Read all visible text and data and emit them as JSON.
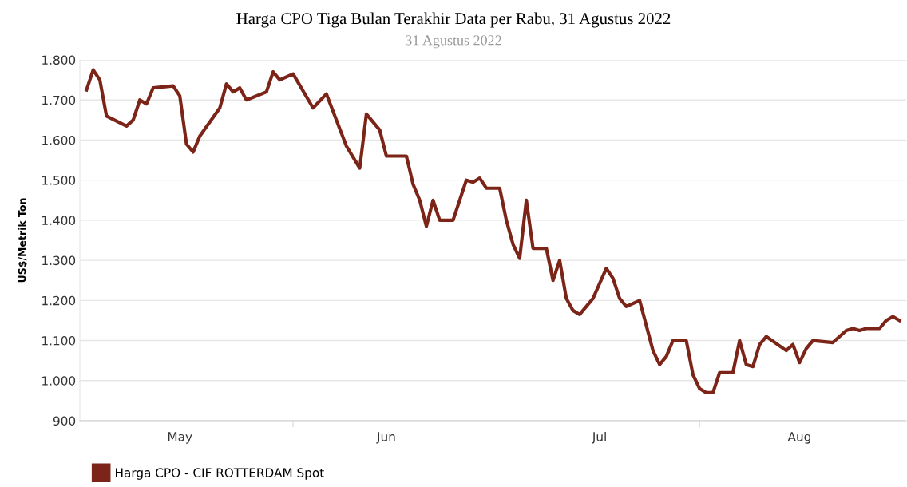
{
  "chart_data": {
    "type": "line",
    "title": "Harga CPO Tiga Bulan Terakhir Data per Rabu, 31 Agustus 2022",
    "subtitle": "31 Agustus 2022",
    "ylabel": "US$/Metrik Ton",
    "x": [
      "2022-05-01",
      "2022-05-02",
      "2022-05-03",
      "2022-05-04",
      "2022-05-07",
      "2022-05-08",
      "2022-05-09",
      "2022-05-10",
      "2022-05-11",
      "2022-05-14",
      "2022-05-15",
      "2022-05-16",
      "2022-05-17",
      "2022-05-18",
      "2022-05-21",
      "2022-05-22",
      "2022-05-23",
      "2022-05-24",
      "2022-05-25",
      "2022-05-28",
      "2022-05-29",
      "2022-05-30",
      "2022-06-01",
      "2022-06-04",
      "2022-06-06",
      "2022-06-09",
      "2022-06-11",
      "2022-06-12",
      "2022-06-14",
      "2022-06-15",
      "2022-06-18",
      "2022-06-19",
      "2022-06-20",
      "2022-06-21",
      "2022-06-22",
      "2022-06-23",
      "2022-06-25",
      "2022-06-27",
      "2022-06-28",
      "2022-06-29",
      "2022-06-30",
      "2022-07-02",
      "2022-07-03",
      "2022-07-04",
      "2022-07-05",
      "2022-07-06",
      "2022-07-07",
      "2022-07-09",
      "2022-07-10",
      "2022-07-11",
      "2022-07-12",
      "2022-07-13",
      "2022-07-14",
      "2022-07-16",
      "2022-07-18",
      "2022-07-19",
      "2022-07-20",
      "2022-07-21",
      "2022-07-23",
      "2022-07-25",
      "2022-07-26",
      "2022-07-27",
      "2022-07-28",
      "2022-07-30",
      "2022-07-31",
      "2022-08-01",
      "2022-08-02",
      "2022-08-03",
      "2022-08-04",
      "2022-08-06",
      "2022-08-07",
      "2022-08-08",
      "2022-08-09",
      "2022-08-10",
      "2022-08-11",
      "2022-08-14",
      "2022-08-15",
      "2022-08-16",
      "2022-08-17",
      "2022-08-18",
      "2022-08-21",
      "2022-08-23",
      "2022-08-24",
      "2022-08-25",
      "2022-08-26",
      "2022-08-28",
      "2022-08-29",
      "2022-08-30",
      "2022-08-31"
    ],
    "series": [
      {
        "name": "Harga CPO - CIF ROTTERDAM Spot",
        "color": "#7b2417",
        "values": [
          1725,
          1775,
          1750,
          1660,
          1635,
          1650,
          1700,
          1690,
          1730,
          1735,
          1710,
          1590,
          1570,
          1610,
          1680,
          1740,
          1720,
          1730,
          1700,
          1720,
          1770,
          1750,
          1765,
          1680,
          1715,
          1585,
          1530,
          1665,
          1625,
          1560,
          1560,
          1490,
          1450,
          1385,
          1450,
          1400,
          1400,
          1500,
          1495,
          1505,
          1480,
          1480,
          1400,
          1340,
          1305,
          1450,
          1330,
          1330,
          1250,
          1300,
          1205,
          1175,
          1165,
          1205,
          1280,
          1255,
          1205,
          1185,
          1200,
          1075,
          1040,
          1060,
          1100,
          1100,
          1015,
          980,
          970,
          970,
          1020,
          1020,
          1100,
          1040,
          1035,
          1090,
          1110,
          1075,
          1090,
          1045,
          1080,
          1100,
          1095,
          1125,
          1130,
          1125,
          1130,
          1130,
          1150,
          1160,
          1150
        ]
      }
    ],
    "xlim": [
      "2022-04-30",
      "2022-09-01"
    ],
    "xticks": [
      {
        "value": "2022-05-15",
        "label": "May"
      },
      {
        "value": "2022-06-01",
        "label": null
      },
      {
        "value": "2022-06-15",
        "label": "Jun"
      },
      {
        "value": "2022-07-01",
        "label": null
      },
      {
        "value": "2022-07-17",
        "label": "Jul"
      },
      {
        "value": "2022-08-01",
        "label": null
      },
      {
        "value": "2022-08-16",
        "label": "Aug"
      }
    ],
    "ylim": [
      900,
      1800
    ],
    "yticks": [
      {
        "value": 900,
        "label": "900"
      },
      {
        "value": 1000,
        "label": "1.000"
      },
      {
        "value": 1100,
        "label": "1.100"
      },
      {
        "value": 1200,
        "label": "1.200"
      },
      {
        "value": 1300,
        "label": "1.300"
      },
      {
        "value": 1400,
        "label": "1.400"
      },
      {
        "value": 1500,
        "label": "1.500"
      },
      {
        "value": 1600,
        "label": "1.600"
      },
      {
        "value": 1700,
        "label": "1.700"
      },
      {
        "value": 1800,
        "label": "1.800"
      }
    ],
    "grid": "y",
    "legend": "bottom left",
    "marker": "none",
    "line_style": "solid"
  }
}
